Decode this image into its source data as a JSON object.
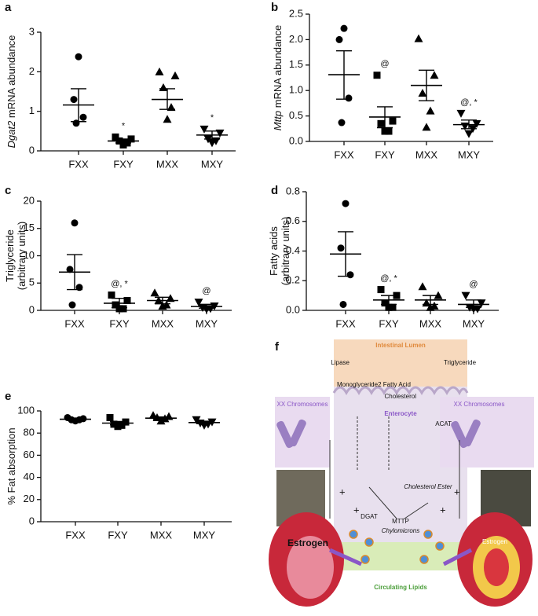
{
  "chart_data": [
    {
      "type": "dot",
      "label": "a",
      "ylabel_gene": "Dgat2",
      "ylabel": [
        "mRNA abundance"
      ],
      "ylim": [
        0,
        3
      ],
      "yticks": [
        0,
        1,
        2,
        3
      ],
      "series": [
        {
          "name": "FXX",
          "marker": "circle",
          "values": [
            2.38,
            1.3,
            0.85,
            0.7
          ],
          "mean": 1.16,
          "error_bar": [
            0.74,
            1.57
          ]
        },
        {
          "name": "FXY",
          "marker": "square",
          "values": [
            0.35,
            0.3,
            0.25,
            0.2,
            0.15
          ],
          "mean": 0.25,
          "error_bar": [
            0.2,
            0.3
          ],
          "annotation": "*"
        },
        {
          "name": "MXX",
          "marker": "triangle",
          "values": [
            2.0,
            1.9,
            1.6,
            1.1,
            0.8
          ],
          "mean": 1.3,
          "error_bar": [
            1.05,
            1.57
          ]
        },
        {
          "name": "MXY",
          "marker": "triangle-down",
          "values": [
            0.55,
            0.45,
            0.3,
            0.25,
            0.2
          ],
          "mean": 0.4,
          "error_bar": [
            0.3,
            0.5
          ],
          "annotation": "*"
        }
      ]
    },
    {
      "type": "dot",
      "label": "b",
      "ylabel_gene": "Mttp",
      "ylabel": [
        "mRNA abundance"
      ],
      "ylim": [
        0,
        2.5
      ],
      "yticks": [
        {
          "value": 0,
          "label": "0.0"
        },
        {
          "value": 0.5,
          "label": "0.5"
        },
        {
          "value": 1,
          "label": "1.0"
        },
        {
          "value": 1.5,
          "label": "1.5"
        },
        {
          "value": 2,
          "label": "2.0"
        },
        {
          "value": 2.5,
          "label": "2.5"
        }
      ],
      "series": [
        {
          "name": "FXX",
          "marker": "circle",
          "values": [
            2.22,
            2.0,
            0.85,
            0.37
          ],
          "mean": 1.31,
          "error_bar": [
            0.83,
            1.78
          ]
        },
        {
          "name": "FXY",
          "marker": "square",
          "values": [
            1.3,
            0.4,
            0.35,
            0.2,
            0.2
          ],
          "mean": 0.48,
          "error_bar": [
            0.27,
            0.68
          ],
          "annotation": "@"
        },
        {
          "name": "MXX",
          "marker": "triangle",
          "values": [
            2.02,
            1.3,
            0.95,
            0.6,
            0.28
          ],
          "mean": 1.1,
          "error_bar": [
            0.8,
            1.4
          ]
        },
        {
          "name": "MXY",
          "marker": "triangle-down",
          "values": [
            0.55,
            0.35,
            0.3,
            0.25,
            0.15
          ],
          "mean": 0.33,
          "error_bar": [
            0.25,
            0.42
          ],
          "annotation": "@, *"
        }
      ]
    },
    {
      "type": "dot",
      "label": "c",
      "ylabel": [
        "Triglyceride",
        "(arbitrary units)"
      ],
      "ylim": [
        0,
        20
      ],
      "yticks": [
        0,
        5,
        10,
        15,
        20
      ],
      "series": [
        {
          "name": "FXX",
          "marker": "circle",
          "values": [
            16,
            7.5,
            4.2,
            1.0
          ],
          "mean": 7.0,
          "error_bar": [
            3.8,
            10.2
          ]
        },
        {
          "name": "FXY",
          "marker": "square",
          "values": [
            2.8,
            1.8,
            1.0,
            0.3,
            0.3
          ],
          "mean": 1.3,
          "error_bar": [
            0.5,
            2.2
          ],
          "annotation": "@, *"
        },
        {
          "name": "MXX",
          "marker": "triangle",
          "values": [
            3.2,
            2.2,
            1.8,
            1.0,
            0.8
          ],
          "mean": 1.8,
          "error_bar": [
            1.2,
            2.4
          ]
        },
        {
          "name": "MXY",
          "marker": "triangle-down",
          "values": [
            1.5,
            0.8,
            0.5,
            0.3,
            0.2
          ],
          "mean": 0.7,
          "error_bar": [
            0.4,
            1.1
          ],
          "annotation": "@"
        }
      ]
    },
    {
      "type": "dot",
      "label": "d",
      "ylabel": [
        "Fatty acids",
        "(arbitrary units)"
      ],
      "ylim": [
        0,
        0.8
      ],
      "yticks": [
        {
          "value": 0,
          "label": "0.0"
        },
        {
          "value": 0.2,
          "label": "0.2"
        },
        {
          "value": 0.4,
          "label": "0.4"
        },
        {
          "value": 0.6,
          "label": "0.6"
        },
        {
          "value": 0.8,
          "label": "0.8"
        }
      ],
      "series": [
        {
          "name": "FXX",
          "marker": "circle",
          "values": [
            0.72,
            0.42,
            0.24,
            0.04
          ],
          "mean": 0.38,
          "error_bar": [
            0.23,
            0.53
          ]
        },
        {
          "name": "FXY",
          "marker": "square",
          "values": [
            0.14,
            0.1,
            0.05,
            0.02,
            0.02
          ],
          "mean": 0.07,
          "error_bar": [
            0.04,
            0.1
          ],
          "annotation": "@, *"
        },
        {
          "name": "MXX",
          "marker": "triangle",
          "values": [
            0.16,
            0.1,
            0.05,
            0.03,
            0.02
          ],
          "mean": 0.07,
          "error_bar": [
            0.04,
            0.1
          ]
        },
        {
          "name": "MXY",
          "marker": "triangle-down",
          "values": [
            0.1,
            0.05,
            0.02,
            0.01,
            0.01
          ],
          "mean": 0.04,
          "error_bar": [
            0.02,
            0.07
          ],
          "annotation": "@"
        }
      ]
    },
    {
      "type": "dot",
      "label": "e",
      "ylabel": [
        "% Fat absorption"
      ],
      "ylim": [
        0,
        100
      ],
      "yticks": [
        0,
        20,
        40,
        60,
        80,
        100
      ],
      "series": [
        {
          "name": "FXX",
          "marker": "circle",
          "values": [
            94,
            93,
            92,
            92,
            91
          ],
          "mean": 92.5,
          "error_bar": [
            91.5,
            93.5
          ]
        },
        {
          "name": "FXY",
          "marker": "square",
          "values": [
            94,
            90,
            88,
            87,
            86
          ],
          "mean": 89,
          "error_bar": [
            87.5,
            90.5
          ]
        },
        {
          "name": "MXX",
          "marker": "triangle",
          "values": [
            96,
            95,
            94,
            93,
            91
          ],
          "mean": 93.5,
          "error_bar": [
            92.5,
            94.5
          ]
        },
        {
          "name": "MXY",
          "marker": "triangle-down",
          "values": [
            92,
            90,
            89,
            88,
            87
          ],
          "mean": 89.5,
          "error_bar": [
            88.5,
            90.5
          ]
        }
      ]
    }
  ],
  "diagram": {
    "label": "f",
    "lumen": "Intestinal Lumen",
    "lipase": "Lipase",
    "triglyceride": "Triglyceride",
    "monoglyceride": "Monoglyceride",
    "fatty_acid": "2 Fatty Acid",
    "cholesterol": "Cholesterol",
    "enterocyte": "Enterocyte",
    "acat": "ACAT",
    "chromosomes_left": "XX Chromosomes",
    "chromosomes_right": "XX Chromosomes",
    "cholesterol_ester": "Cholesterol Ester",
    "dgat": "DGAT",
    "mttp": "MTTP",
    "chylomicrons": "Chylomicrons",
    "estrogen_left": "Estrogen",
    "estrogen_right": "Estrogen",
    "circulating": "Circulating Lipids",
    "plus": [
      "+",
      "+",
      "+",
      "+"
    ]
  }
}
